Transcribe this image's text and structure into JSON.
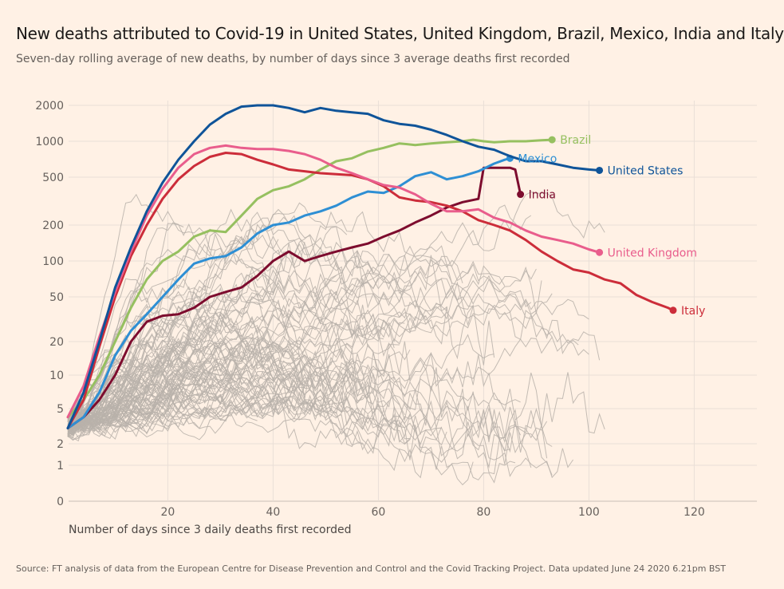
{
  "title": "New deaths attributed to Covid-19 in United States, United Kingdom, Brazil, Mexico, India and Italy",
  "subtitle": "Seven-day rolling average of new deaths, by number of days since 3 average deaths first recorded",
  "source": "Source: FT analysis of data from the European Centre for Disease Prevention and Control and the Covid Tracking Project. Data updated June 24 2020 6.21pm BST",
  "chart_data": {
    "type": "line",
    "title": "New deaths attributed to Covid-19 in United States, United Kingdom, Brazil, Mexico, India and Italy",
    "subtitle": "Seven-day rolling average of new deaths, by number of days since 3 average deaths first recorded",
    "xlabel": "Number of days since 3 daily deaths first recorded",
    "ylabel": "",
    "y_scale": "symlog",
    "xlim": [
      1,
      130
    ],
    "ylim": [
      0,
      2500
    ],
    "x_ticks": [
      20,
      40,
      60,
      80,
      100,
      120
    ],
    "y_ticks": [
      0,
      1,
      2,
      5,
      10,
      20,
      50,
      100,
      200,
      500,
      1000,
      2000
    ],
    "grid": true,
    "legend": "direct labels at line ends",
    "colors": {
      "background": "#fff1e5",
      "grid": "#e9dfd6",
      "other_countries": "#b9b1aa",
      "United States": "#0f5499",
      "United Kingdom": "#e95d8c",
      "Brazil": "#96c060",
      "Mexico": "#2e8fd4",
      "India": "#7d0c2e",
      "Italy": "#cc2d3a"
    },
    "series": [
      {
        "name": "United States",
        "x": [
          1,
          4,
          7,
          10,
          13,
          16,
          19,
          22,
          25,
          28,
          31,
          34,
          37,
          40,
          43,
          46,
          49,
          52,
          55,
          58,
          61,
          64,
          67,
          70,
          73,
          76,
          79,
          82,
          85,
          88,
          91,
          94,
          97,
          100,
          102
        ],
        "values": [
          3,
          7,
          20,
          60,
          130,
          260,
          450,
          700,
          1000,
          1380,
          1700,
          1950,
          2000,
          2000,
          1900,
          1750,
          1900,
          1800,
          1750,
          1700,
          1500,
          1400,
          1350,
          1250,
          1130,
          1000,
          900,
          850,
          750,
          680,
          680,
          640,
          600,
          580,
          570
        ]
      },
      {
        "name": "United Kingdom",
        "x": [
          1,
          4,
          7,
          10,
          13,
          16,
          19,
          22,
          25,
          28,
          31,
          34,
          37,
          40,
          43,
          46,
          49,
          52,
          55,
          58,
          61,
          64,
          67,
          70,
          73,
          76,
          79,
          82,
          85,
          88,
          91,
          94,
          97,
          100,
          102
        ],
        "values": [
          4,
          8,
          22,
          55,
          120,
          240,
          400,
          600,
          780,
          880,
          920,
          880,
          860,
          860,
          830,
          780,
          700,
          600,
          540,
          480,
          430,
          410,
          360,
          300,
          260,
          260,
          270,
          230,
          210,
          180,
          160,
          150,
          140,
          125,
          118
        ]
      },
      {
        "name": "Brazil",
        "x": [
          1,
          4,
          7,
          10,
          13,
          16,
          19,
          22,
          25,
          28,
          31,
          34,
          37,
          40,
          43,
          46,
          49,
          52,
          55,
          58,
          61,
          64,
          67,
          70,
          73,
          76,
          78,
          80,
          82,
          85,
          88,
          91,
          93
        ],
        "values": [
          4,
          6,
          10,
          20,
          40,
          70,
          100,
          120,
          160,
          180,
          175,
          240,
          330,
          390,
          420,
          480,
          580,
          680,
          720,
          820,
          880,
          960,
          930,
          960,
          980,
          1000,
          1030,
          1000,
          980,
          1000,
          1000,
          1020,
          1030
        ]
      },
      {
        "name": "Mexico",
        "x": [
          1,
          4,
          7,
          10,
          13,
          16,
          19,
          22,
          25,
          28,
          31,
          34,
          37,
          40,
          43,
          46,
          49,
          52,
          55,
          58,
          61,
          64,
          67,
          70,
          73,
          76,
          79,
          82,
          84,
          85
        ],
        "values": [
          3,
          4,
          7,
          15,
          25,
          35,
          50,
          70,
          95,
          105,
          110,
          130,
          170,
          200,
          210,
          240,
          260,
          290,
          340,
          380,
          370,
          420,
          510,
          550,
          480,
          510,
          560,
          650,
          700,
          720
        ]
      },
      {
        "name": "India",
        "x": [
          1,
          4,
          7,
          10,
          13,
          16,
          19,
          22,
          25,
          28,
          31,
          34,
          37,
          40,
          43,
          46,
          49,
          52,
          55,
          58,
          61,
          64,
          67,
          70,
          73,
          76,
          79,
          80,
          82,
          85,
          86,
          87
        ],
        "values": [
          3,
          4,
          6,
          10,
          20,
          30,
          34,
          35,
          40,
          50,
          55,
          60,
          75,
          100,
          120,
          100,
          110,
          120,
          130,
          140,
          160,
          180,
          210,
          240,
          280,
          310,
          330,
          600,
          600,
          600,
          580,
          360
        ]
      },
      {
        "name": "Italy",
        "x": [
          1,
          4,
          7,
          10,
          13,
          16,
          19,
          22,
          25,
          28,
          31,
          34,
          37,
          40,
          43,
          46,
          49,
          52,
          55,
          58,
          61,
          64,
          67,
          70,
          73,
          76,
          79,
          82,
          85,
          88,
          91,
          94,
          97,
          100,
          103,
          106,
          109,
          112,
          115,
          116
        ],
        "values": [
          3,
          6,
          18,
          50,
          110,
          200,
          330,
          480,
          620,
          740,
          800,
          780,
          700,
          640,
          580,
          560,
          540,
          530,
          520,
          480,
          420,
          340,
          320,
          310,
          290,
          260,
          220,
          200,
          180,
          150,
          120,
          100,
          85,
          80,
          70,
          65,
          52,
          45,
          40,
          38
        ]
      }
    ],
    "series_labels": [
      "Brazil",
      "Mexico",
      "United States",
      "India",
      "United Kingdom",
      "Italy"
    ]
  }
}
